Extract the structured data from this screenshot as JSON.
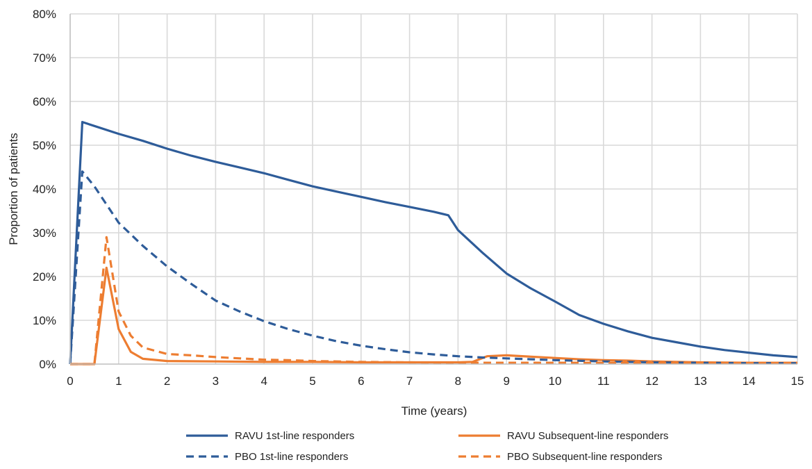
{
  "chart_data": {
    "type": "line",
    "xlabel": "Time (years)",
    "ylabel": "Proportion of patients",
    "xlim": [
      0,
      15
    ],
    "ylim": [
      0,
      80
    ],
    "x_ticks": [
      "0",
      "1",
      "2",
      "3",
      "4",
      "5",
      "6",
      "7",
      "8",
      "9",
      "10",
      "11",
      "12",
      "13",
      "14",
      "15"
    ],
    "y_ticks": [
      "0%",
      "10%",
      "20%",
      "30%",
      "40%",
      "50%",
      "60%",
      "70%",
      "80%"
    ],
    "grid": true,
    "legend_position": "bottom",
    "series": [
      {
        "name": "RAVU 1st-line responders",
        "color": "#2e5c99",
        "dash": "solid",
        "points": [
          [
            0,
            0
          ],
          [
            0.25,
            55.3
          ],
          [
            0.5,
            54.4
          ],
          [
            1,
            52.6
          ],
          [
            1.5,
            51.0
          ],
          [
            2,
            49.2
          ],
          [
            2.5,
            47.6
          ],
          [
            3,
            46.2
          ],
          [
            3.5,
            44.9
          ],
          [
            4,
            43.6
          ],
          [
            4.5,
            42.1
          ],
          [
            5,
            40.6
          ],
          [
            5.5,
            39.4
          ],
          [
            6,
            38.2
          ],
          [
            6.5,
            37.0
          ],
          [
            7,
            35.9
          ],
          [
            7.5,
            34.8
          ],
          [
            7.8,
            34.0
          ],
          [
            8,
            30.6
          ],
          [
            8.5,
            25.5
          ],
          [
            9,
            20.7
          ],
          [
            9.5,
            17.3
          ],
          [
            10,
            14.3
          ],
          [
            10.5,
            11.2
          ],
          [
            11,
            9.2
          ],
          [
            11.5,
            7.5
          ],
          [
            12,
            6.0
          ],
          [
            12.5,
            5.0
          ],
          [
            13,
            4.0
          ],
          [
            13.5,
            3.2
          ],
          [
            14,
            2.6
          ],
          [
            14.5,
            2.0
          ],
          [
            15,
            1.6
          ]
        ]
      },
      {
        "name": "RAVU Subsequent-line responders",
        "color": "#ed7d31",
        "dash": "solid",
        "points": [
          [
            0,
            0
          ],
          [
            0.5,
            0
          ],
          [
            0.75,
            22.0
          ],
          [
            1,
            8.0
          ],
          [
            1.25,
            2.8
          ],
          [
            1.5,
            1.2
          ],
          [
            2,
            0.7
          ],
          [
            3,
            0.6
          ],
          [
            4,
            0.5
          ],
          [
            5,
            0.5
          ],
          [
            6,
            0.4
          ],
          [
            7,
            0.4
          ],
          [
            8,
            0.4
          ],
          [
            8.3,
            0.5
          ],
          [
            8.6,
            1.8
          ],
          [
            9,
            2.0
          ],
          [
            9.5,
            1.7
          ],
          [
            10,
            1.4
          ],
          [
            10.5,
            1.1
          ],
          [
            11,
            0.9
          ],
          [
            11.5,
            0.8
          ],
          [
            12,
            0.6
          ],
          [
            12.5,
            0.5
          ],
          [
            13,
            0.4
          ],
          [
            14,
            0.3
          ],
          [
            15,
            0.3
          ]
        ]
      },
      {
        "name": "PBO 1st-line responders",
        "color": "#2e5c99",
        "dash": "dashed",
        "points": [
          [
            0,
            0
          ],
          [
            0.25,
            44.0
          ],
          [
            0.5,
            40.6
          ],
          [
            1,
            32.3
          ],
          [
            1.5,
            27.0
          ],
          [
            2,
            22.3
          ],
          [
            2.5,
            18.3
          ],
          [
            3,
            14.5
          ],
          [
            3.5,
            12.0
          ],
          [
            4,
            9.8
          ],
          [
            4.5,
            8.0
          ],
          [
            5,
            6.5
          ],
          [
            5.5,
            5.2
          ],
          [
            6,
            4.2
          ],
          [
            6.5,
            3.4
          ],
          [
            7,
            2.7
          ],
          [
            7.5,
            2.2
          ],
          [
            8,
            1.8
          ],
          [
            8.5,
            1.5
          ],
          [
            9,
            1.3
          ],
          [
            10,
            0.9
          ],
          [
            11,
            0.6
          ],
          [
            12,
            0.4
          ],
          [
            13,
            0.3
          ],
          [
            14,
            0.2
          ],
          [
            15,
            0.2
          ]
        ]
      },
      {
        "name": "PBO Subsequent-line responders",
        "color": "#ed7d31",
        "dash": "dashed",
        "points": [
          [
            0,
            0
          ],
          [
            0.5,
            0
          ],
          [
            0.75,
            29.0
          ],
          [
            1,
            12.0
          ],
          [
            1.25,
            6.5
          ],
          [
            1.5,
            3.8
          ],
          [
            2,
            2.3
          ],
          [
            2.5,
            2.0
          ],
          [
            3,
            1.6
          ],
          [
            3.5,
            1.3
          ],
          [
            4,
            1.0
          ],
          [
            4.5,
            0.9
          ],
          [
            5,
            0.7
          ],
          [
            6,
            0.5
          ],
          [
            7,
            0.4
          ],
          [
            8,
            0.3
          ],
          [
            9,
            0.3
          ],
          [
            10,
            0.3
          ],
          [
            11,
            0.3
          ],
          [
            12,
            0.3
          ],
          [
            13,
            0.3
          ],
          [
            14,
            0.3
          ],
          [
            15,
            0.3
          ]
        ]
      }
    ]
  }
}
